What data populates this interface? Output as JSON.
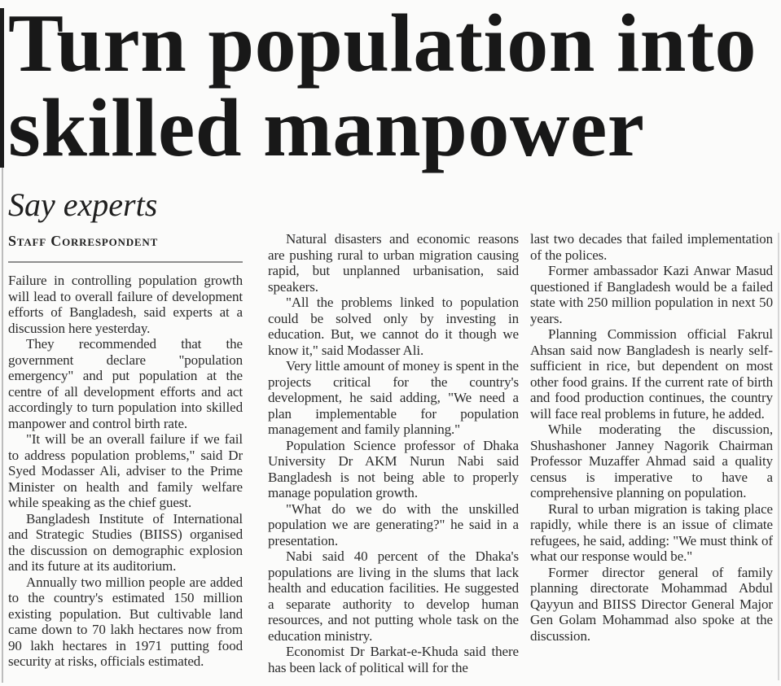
{
  "page": {
    "background_color": "#fbfbfa",
    "headline_color": "#181818",
    "body_text_color": "#2a2a2a",
    "rule_color": "#8e8e8e"
  },
  "article": {
    "headline": "Turn population into skilled manpower",
    "headline_lines": [
      "Turn population into",
      "skilled manpower"
    ],
    "subhead": "Say experts",
    "byline": "Staff Correspondent",
    "columns": [
      {
        "paragraphs": [
          {
            "indent": false,
            "text": "Failure in controlling population growth will lead to overall failure of development efforts of Bangladesh, said experts at a discussion here yesterday."
          },
          {
            "indent": true,
            "text": "They recommended that the government declare \"population emergency\" and put population at the centre of all development efforts and act accordingly to turn population into skilled manpower and control birth rate."
          },
          {
            "indent": true,
            "text": "\"It will be an overall failure if we fail to address population problems,\" said Dr Syed Modasser Ali, adviser to the Prime Minister on health and family welfare while speaking as the chief guest."
          },
          {
            "indent": true,
            "text": "Bangladesh Institute of International and Strategic Studies (BIISS) organised the discussion on demographic explosion and its future at its auditorium."
          },
          {
            "indent": true,
            "text": "Annually two million people are added to the country's estimated 150 million existing population. But cultivable land came down to 70 lakh hectares now from 90 lakh hectares in 1971 putting food security at risks, officials estimated."
          }
        ]
      },
      {
        "paragraphs": [
          {
            "indent": true,
            "text": "Natural disasters and economic reasons are pushing rural to urban migration causing rapid, but unplanned urbanisation, said speakers."
          },
          {
            "indent": true,
            "text": "\"All the problems linked to population could be solved only by investing in education. But, we cannot do it though we know it,\" said Modasser Ali."
          },
          {
            "indent": true,
            "text": "Very little amount of money is spent in the projects critical for the country's development, he said adding, \"We need a plan implementable for population management and family planning.\""
          },
          {
            "indent": true,
            "text": "Population Science professor of Dhaka University Dr AKM Nurun Nabi said Bangladesh is not being able to properly manage population growth."
          },
          {
            "indent": true,
            "text": "\"What do we do with the unskilled population we are generating?\" he said in a presentation."
          },
          {
            "indent": true,
            "text": "Nabi said 40 percent of the Dhaka's populations are living in the slums that lack health and education facilities. He suggested a separate authority to develop human resources, and not putting whole task on the education ministry."
          },
          {
            "indent": true,
            "text": "Economist Dr Barkat-e-Khuda said there has been lack of political will for the"
          }
        ]
      },
      {
        "paragraphs": [
          {
            "indent": false,
            "text": "last two decades that failed implementation of the polices."
          },
          {
            "indent": true,
            "text": "Former ambassador Kazi Anwar Masud questioned if Bangladesh would be a failed state with 250 million population in next 50 years."
          },
          {
            "indent": true,
            "text": "Planning Commission official Fakrul Ahsan said now Bangladesh is nearly self-sufficient in rice, but dependent on most other food grains. If the current rate of birth and food production continues, the country will face real problems in future, he added."
          },
          {
            "indent": true,
            "text": "While moderating the discussion, Shushashoner Janney Nagorik Chairman Professor Muzaffer Ahmad said a quality census is imperative to have a comprehensive planning on population."
          },
          {
            "indent": true,
            "text": "Rural to urban migration is taking place rapidly, while there is an issue of climate refugees, he said, adding: \"We must think of what our response would be.\""
          },
          {
            "indent": true,
            "text": "Former director general of family planning directorate Mohammad Abdul Qayyun and BIISS Director General Major Gen Golam Mohammad also spoke at the discussion."
          }
        ]
      }
    ]
  }
}
